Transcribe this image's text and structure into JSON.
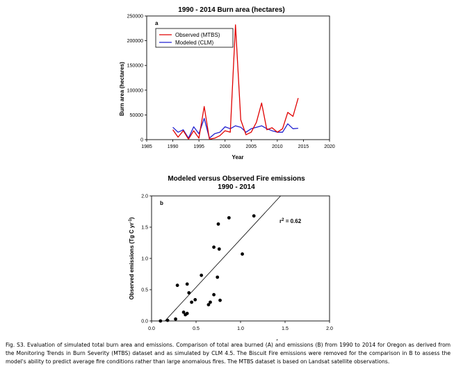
{
  "chart_data": [
    {
      "type": "line",
      "panel_label": "a",
      "title": "1990 - 2014 Burn area (hectares)",
      "xlabel": "Year",
      "ylabel": "Burn area (hectares)",
      "xlim": [
        1985,
        2020
      ],
      "ylim": [
        0,
        250000
      ],
      "xticks": [
        "1985",
        "1990",
        "1995",
        "2000",
        "2005",
        "2010",
        "2015",
        "2020"
      ],
      "yticks": [
        "0",
        "50000",
        "100000",
        "150000",
        "200000",
        "250000"
      ],
      "legend_position": "top-left",
      "grid": false,
      "x": [
        1990,
        1991,
        1992,
        1993,
        1994,
        1995,
        1996,
        1997,
        1998,
        1999,
        2000,
        2001,
        2002,
        2003,
        2004,
        2005,
        2006,
        2007,
        2008,
        2009,
        2010,
        2011,
        2012,
        2013,
        2014
      ],
      "series": [
        {
          "name": "Observed (MTBS)",
          "color": "#e00000",
          "values": [
            20000,
            5000,
            18000,
            1000,
            18000,
            3000,
            67000,
            1000,
            3000,
            8000,
            18000,
            15000,
            232000,
            40000,
            10000,
            15000,
            35000,
            74000,
            20000,
            24000,
            15000,
            22000,
            55000,
            47000,
            84000
          ]
        },
        {
          "name": "Modeled (CLM)",
          "color": "#2020d0",
          "values": [
            25000,
            15000,
            20000,
            3000,
            26000,
            12000,
            43000,
            3000,
            12000,
            15000,
            26000,
            22000,
            28000,
            25000,
            15000,
            22000,
            25000,
            28000,
            22000,
            18000,
            15000,
            15000,
            32000,
            22000,
            23000
          ]
        }
      ]
    },
    {
      "type": "scatter",
      "panel_label": "b",
      "title": "Modeled versus Observed Fire emissions",
      "subtitle": "1990 - 2014",
      "xlabel": "Modeled emissions (Tg C yr⁻¹)",
      "ylabel": "Observed emissions (Tg C yr⁻¹)",
      "xlim": [
        0,
        2.0
      ],
      "ylim": [
        0,
        2.0
      ],
      "xticks": [
        "0.0",
        "0.5",
        "1.0",
        "1.5",
        "2.0"
      ],
      "yticks": [
        "0.0",
        "0.5",
        "1.0",
        "1.5",
        "2.0"
      ],
      "grid": false,
      "annotation": "r² = 0.62",
      "fit_line": {
        "x": [
          0.15,
          1.45
        ],
        "y": [
          0.0,
          2.0
        ]
      },
      "points": [
        {
          "x": 0.1,
          "y": 0.0
        },
        {
          "x": 0.18,
          "y": 0.01
        },
        {
          "x": 0.27,
          "y": 0.03
        },
        {
          "x": 0.29,
          "y": 0.57
        },
        {
          "x": 0.36,
          "y": 0.14
        },
        {
          "x": 0.38,
          "y": 0.1
        },
        {
          "x": 0.4,
          "y": 0.12
        },
        {
          "x": 0.4,
          "y": 0.59
        },
        {
          "x": 0.42,
          "y": 0.45
        },
        {
          "x": 0.45,
          "y": 0.3
        },
        {
          "x": 0.49,
          "y": 0.34
        },
        {
          "x": 0.56,
          "y": 0.73
        },
        {
          "x": 0.64,
          "y": 0.26
        },
        {
          "x": 0.66,
          "y": 0.3
        },
        {
          "x": 0.7,
          "y": 0.42
        },
        {
          "x": 0.7,
          "y": 1.18
        },
        {
          "x": 0.74,
          "y": 0.7
        },
        {
          "x": 0.75,
          "y": 1.55
        },
        {
          "x": 0.76,
          "y": 1.15
        },
        {
          "x": 0.77,
          "y": 0.33
        },
        {
          "x": 0.87,
          "y": 1.65
        },
        {
          "x": 1.02,
          "y": 1.07
        },
        {
          "x": 1.15,
          "y": 1.68
        }
      ]
    }
  ],
  "caption": "Fig. S3.   Evaluation of simulated total burn area and emissions. Comparison of total area burned (A) and emissions (B) from 1990 to 2014 for Oregon as derived from the Monitoring Trends in Burn Severity (MTBS) dataset and as simulated by CLM 4.5. The Biscuit Fire emissions were removed for the comparison in B to assess the model's ability to predict average fire conditions rather than large anomalous fires. The MTBS dataset is based on Landsat satellite observations."
}
